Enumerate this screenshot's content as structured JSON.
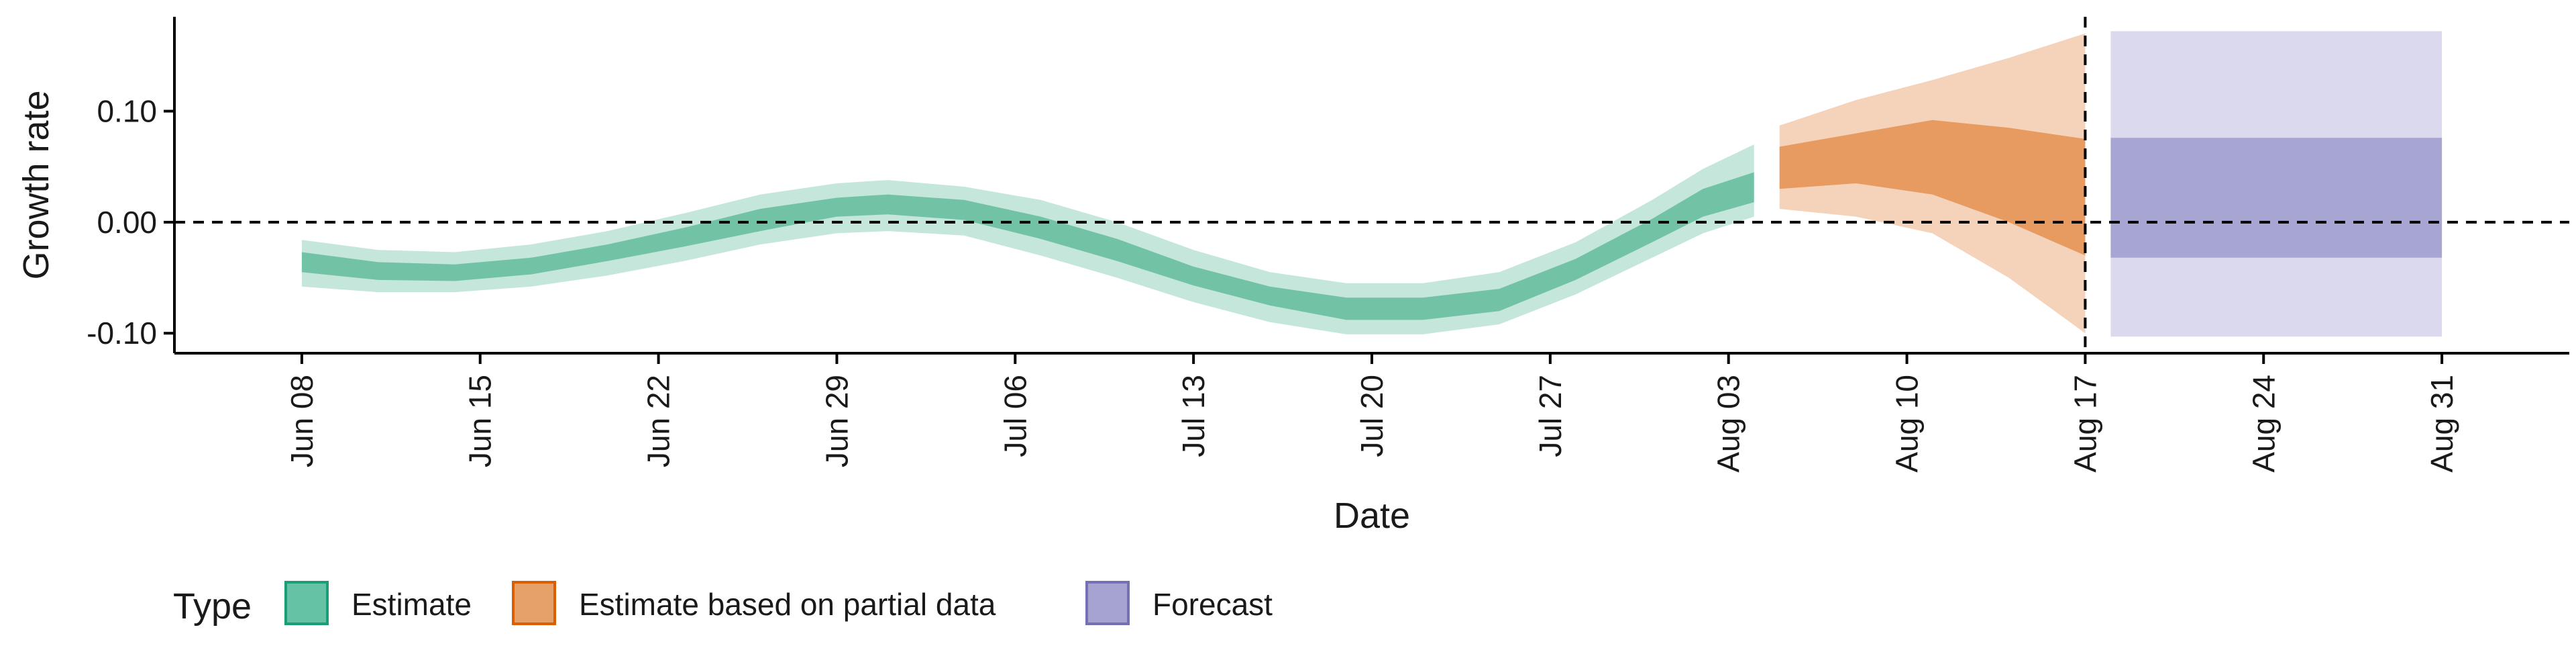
{
  "chart_data": {
    "type": "area",
    "title": "",
    "xlabel": "Date",
    "ylabel": "Growth rate",
    "x_range": [
      "2020-06-03",
      "2020-09-05"
    ],
    "ylim": [
      -0.118,
      0.185
    ],
    "y_ticks": [
      {
        "value": 0.1,
        "label": "0.10"
      },
      {
        "value": 0.0,
        "label": "0.00"
      },
      {
        "value": -0.1,
        "label": "-0.10"
      }
    ],
    "x_ticks": [
      {
        "date": "2020-06-08",
        "label": "Jun 08"
      },
      {
        "date": "2020-06-15",
        "label": "Jun 15"
      },
      {
        "date": "2020-06-22",
        "label": "Jun 22"
      },
      {
        "date": "2020-06-29",
        "label": "Jun 29"
      },
      {
        "date": "2020-07-06",
        "label": "Jul 06"
      },
      {
        "date": "2020-07-13",
        "label": "Jul 13"
      },
      {
        "date": "2020-07-20",
        "label": "Jul 20"
      },
      {
        "date": "2020-07-27",
        "label": "Jul 27"
      },
      {
        "date": "2020-08-03",
        "label": "Aug 03"
      },
      {
        "date": "2020-08-10",
        "label": "Aug 10"
      },
      {
        "date": "2020-08-17",
        "label": "Aug 17"
      },
      {
        "date": "2020-08-24",
        "label": "Aug 24"
      },
      {
        "date": "2020-08-31",
        "label": "Aug 31"
      }
    ],
    "reference_lines": {
      "horizontal_y": 0.0,
      "vertical_date": "2020-08-17"
    },
    "grid": false,
    "legend": {
      "title": "Type",
      "position": "bottom-left",
      "entries": [
        {
          "label": "Estimate",
          "fill": "#66C2A5",
          "stroke": "#1B9E77"
        },
        {
          "label": "Estimate based on partial data",
          "fill": "#E6A06A",
          "stroke": "#D95F02"
        },
        {
          "label": "Forecast",
          "fill": "#A6A3D0",
          "stroke": "#7570B3"
        }
      ]
    },
    "series": [
      {
        "name": "Estimate",
        "inner_color": "#72C2A6",
        "outer_color": "#C5E6DA",
        "points": [
          {
            "date": "2020-06-08",
            "outer": [
              -0.058,
              -0.016
            ],
            "inner": [
              -0.045,
              -0.027
            ]
          },
          {
            "date": "2020-06-11",
            "outer": [
              -0.063,
              -0.025
            ],
            "inner": [
              -0.052,
              -0.036
            ]
          },
          {
            "date": "2020-06-14",
            "outer": [
              -0.063,
              -0.027
            ],
            "inner": [
              -0.053,
              -0.038
            ]
          },
          {
            "date": "2020-06-17",
            "outer": [
              -0.058,
              -0.02
            ],
            "inner": [
              -0.047,
              -0.032
            ]
          },
          {
            "date": "2020-06-20",
            "outer": [
              -0.048,
              -0.008
            ],
            "inner": [
              -0.035,
              -0.02
            ]
          },
          {
            "date": "2020-06-23",
            "outer": [
              -0.035,
              0.008
            ],
            "inner": [
              -0.022,
              -0.005
            ]
          },
          {
            "date": "2020-06-26",
            "outer": [
              -0.02,
              0.025
            ],
            "inner": [
              -0.008,
              0.012
            ]
          },
          {
            "date": "2020-06-29",
            "outer": [
              -0.01,
              0.035
            ],
            "inner": [
              0.005,
              0.022
            ]
          },
          {
            "date": "2020-07-01",
            "outer": [
              -0.008,
              0.038
            ],
            "inner": [
              0.007,
              0.025
            ]
          },
          {
            "date": "2020-07-04",
            "outer": [
              -0.012,
              0.032
            ],
            "inner": [
              0.002,
              0.02
            ]
          },
          {
            "date": "2020-07-07",
            "outer": [
              -0.03,
              0.02
            ],
            "inner": [
              -0.015,
              0.005
            ]
          },
          {
            "date": "2020-07-10",
            "outer": [
              -0.05,
              0.0
            ],
            "inner": [
              -0.035,
              -0.015
            ]
          },
          {
            "date": "2020-07-13",
            "outer": [
              -0.072,
              -0.025
            ],
            "inner": [
              -0.057,
              -0.04
            ]
          },
          {
            "date": "2020-07-16",
            "outer": [
              -0.09,
              -0.045
            ],
            "inner": [
              -0.075,
              -0.058
            ]
          },
          {
            "date": "2020-07-19",
            "outer": [
              -0.101,
              -0.055
            ],
            "inner": [
              -0.088,
              -0.068
            ]
          },
          {
            "date": "2020-07-22",
            "outer": [
              -0.101,
              -0.055
            ],
            "inner": [
              -0.088,
              -0.068
            ]
          },
          {
            "date": "2020-07-25",
            "outer": [
              -0.092,
              -0.045
            ],
            "inner": [
              -0.08,
              -0.06
            ]
          },
          {
            "date": "2020-07-28",
            "outer": [
              -0.065,
              -0.018
            ],
            "inner": [
              -0.052,
              -0.033
            ]
          },
          {
            "date": "2020-07-31",
            "outer": [
              -0.032,
              0.02
            ],
            "inner": [
              -0.018,
              0.003
            ]
          },
          {
            "date": "2020-08-02",
            "outer": [
              -0.01,
              0.048
            ],
            "inner": [
              0.005,
              0.03
            ]
          },
          {
            "date": "2020-08-04",
            "outer": [
              0.005,
              0.07
            ],
            "inner": [
              0.018,
              0.045
            ]
          }
        ]
      },
      {
        "name": "Estimate based on partial data",
        "inner_color": "#E79B60",
        "outer_color": "#F5D2BA",
        "points": [
          {
            "date": "2020-08-05",
            "outer": [
              0.012,
              0.087
            ],
            "inner": [
              0.03,
              0.068
            ]
          },
          {
            "date": "2020-08-08",
            "outer": [
              0.005,
              0.11
            ],
            "inner": [
              0.035,
              0.08
            ]
          },
          {
            "date": "2020-08-11",
            "outer": [
              -0.01,
              0.128
            ],
            "inner": [
              0.025,
              0.092
            ]
          },
          {
            "date": "2020-08-14",
            "outer": [
              -0.05,
              0.148
            ],
            "inner": [
              0.0,
              0.085
            ]
          },
          {
            "date": "2020-08-17",
            "outer": [
              -0.1,
              0.17
            ],
            "inner": [
              -0.03,
              0.075
            ]
          }
        ]
      },
      {
        "name": "Forecast",
        "inner_color": "#A7A5D2",
        "outer_color": "#DAD9EE",
        "points": [
          {
            "date": "2020-08-18",
            "outer": [
              -0.103,
              0.172
            ],
            "inner": [
              -0.032,
              0.076
            ]
          },
          {
            "date": "2020-08-31",
            "outer": [
              -0.103,
              0.172
            ],
            "inner": [
              -0.032,
              0.076
            ]
          }
        ]
      }
    ]
  }
}
